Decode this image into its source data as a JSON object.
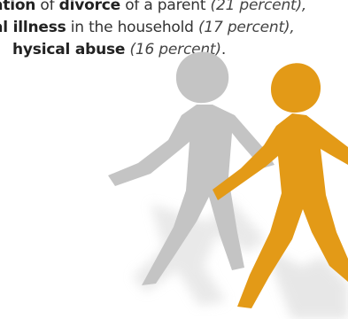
{
  "text": {
    "line1": [
      {
        "t": "ation",
        "style": "bold"
      },
      {
        "t": " of ",
        "style": "normal"
      },
      {
        "t": "divorce",
        "style": "bold"
      },
      {
        "t": " of a parent ",
        "style": "normal"
      },
      {
        "t": "(21 percent),",
        "style": "ital"
      }
    ],
    "line2": [
      {
        "t": "al illness",
        "style": "bold"
      },
      {
        "t": " in the household ",
        "style": "normal"
      },
      {
        "t": "(17 percent),",
        "style": "ital"
      }
    ],
    "line3": [
      {
        "t": "hysical abuse",
        "style": "bold"
      },
      {
        "t": " ",
        "style": "normal"
      },
      {
        "t": "(16 percent)",
        "style": "ital"
      },
      {
        "t": ".",
        "style": "normal"
      }
    ]
  },
  "figures": [
    {
      "name": "gray-person-figure",
      "color": "#c4c4c4",
      "shadow": "#e8e8e8"
    },
    {
      "name": "orange-person-figure",
      "color": "#e39a17",
      "shadow": "#dcdcdc"
    }
  ]
}
